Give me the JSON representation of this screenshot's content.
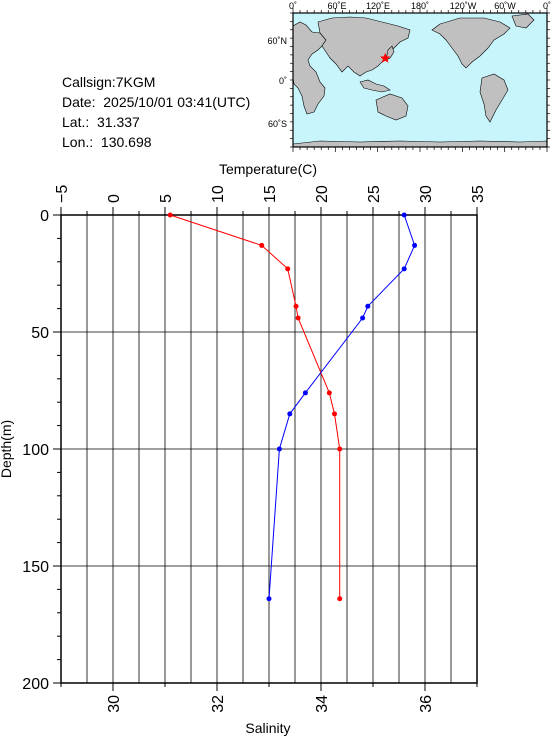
{
  "info": {
    "callsign": "Callsign:7KGM",
    "date": "Date:  2025/10/01 03:41(UTC)",
    "lat": "Lat.:  31.337",
    "lon": "Lon.:  130.698"
  },
  "map": {
    "lon_labels": [
      "0˚",
      "60˚E",
      "120˚E",
      "180˚",
      "120˚W",
      "60˚W",
      "0˚"
    ],
    "lat_labels": [
      "60˚N",
      "0˚",
      "60˚S"
    ],
    "ocean_color": "#c8f4fc",
    "land_color": "#c0c0c0",
    "marker_color": "#ff0000",
    "marker": {
      "lon": 130.698,
      "lat": 31.337
    }
  },
  "chart_data": {
    "type": "line",
    "top_axis": {
      "label": "Temperature(C)",
      "range": [
        -5,
        35
      ],
      "ticks": [
        "−5",
        "0",
        "5",
        "10",
        "15",
        "20",
        "25",
        "30",
        "35"
      ]
    },
    "bottom_axis": {
      "label": "Salinity",
      "range": [
        29,
        37
      ],
      "ticks": [
        "30",
        "32",
        "34",
        "36"
      ]
    },
    "y_axis": {
      "label": "Depth(m)",
      "range": [
        0,
        200
      ],
      "inverted": true,
      "ticks": [
        "0",
        "50",
        "100",
        "150",
        "200"
      ]
    },
    "grid": true,
    "series": [
      {
        "axis": "temperature",
        "color": "#ff0000",
        "points": [
          [
            5.5,
            0
          ],
          [
            14.3,
            13
          ],
          [
            16.8,
            23
          ],
          [
            17.6,
            39
          ],
          [
            17.8,
            44
          ],
          [
            20.8,
            76
          ],
          [
            21.3,
            85
          ],
          [
            21.8,
            100
          ],
          [
            21.8,
            164
          ]
        ]
      },
      {
        "axis": "salinity",
        "color": "#0000ff",
        "points": [
          [
            35.6,
            0
          ],
          [
            35.8,
            13
          ],
          [
            35.6,
            23
          ],
          [
            34.9,
            39
          ],
          [
            34.8,
            44
          ],
          [
            33.7,
            76
          ],
          [
            33.4,
            85
          ],
          [
            33.2,
            100
          ],
          [
            33.0,
            164
          ]
        ]
      }
    ]
  }
}
